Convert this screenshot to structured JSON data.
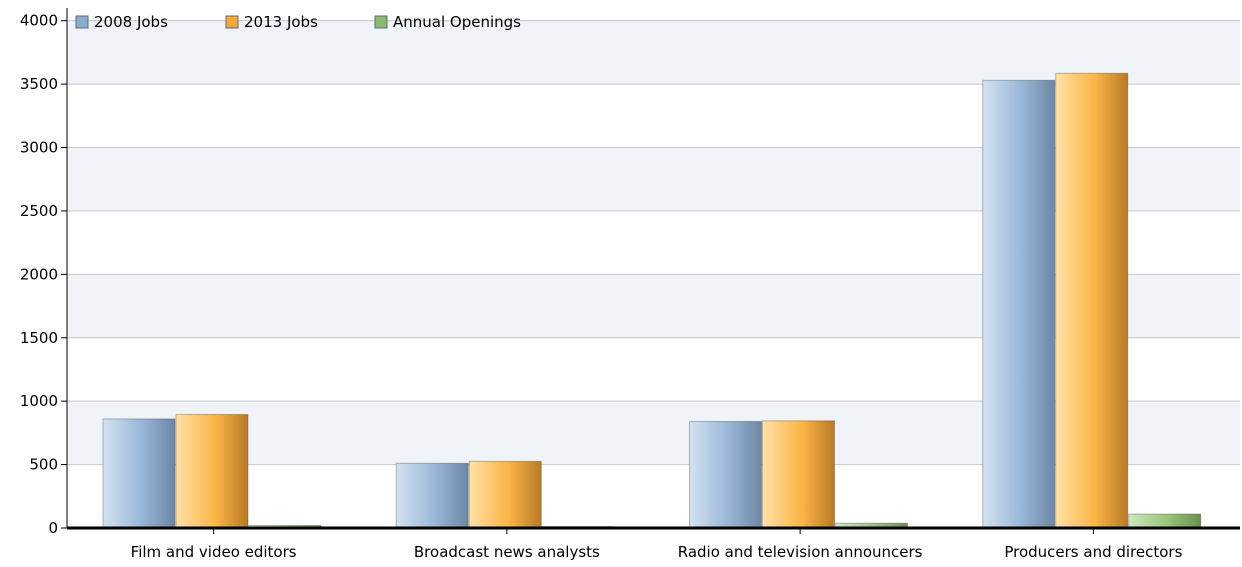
{
  "chart_data": {
    "type": "bar",
    "categories": [
      "Film and video editors",
      "Broadcast news analysts",
      "Radio and television announcers",
      "Producers and directors"
    ],
    "series": [
      {
        "name": "2008 Jobs",
        "values": [
          860,
          510,
          840,
          3530
        ],
        "color": "#8caccc"
      },
      {
        "name": "2013 Jobs",
        "values": [
          895,
          525,
          845,
          3585
        ],
        "color": "#f5a83a"
      },
      {
        "name": "Annual Openings",
        "values": [
          20,
          12,
          38,
          110
        ],
        "color": "#8db86f"
      }
    ],
    "y_ticks": [
      0,
      500,
      1000,
      1500,
      2000,
      2500,
      3000,
      3500,
      4000
    ],
    "ylim": [
      0,
      4100
    ],
    "grid": true,
    "legend_position": "top-left"
  }
}
